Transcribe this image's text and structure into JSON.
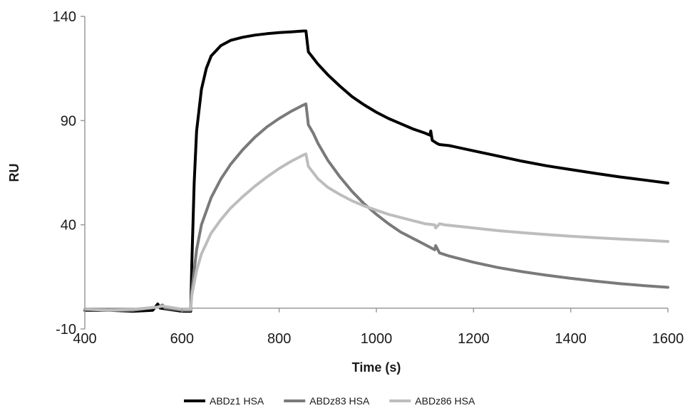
{
  "chart_data": {
    "type": "line",
    "title": "",
    "xlabel": "Time (s)",
    "ylabel": "RU",
    "xlim": [
      400,
      1600
    ],
    "ylim": [
      -10,
      140
    ],
    "xticks": [
      400,
      600,
      800,
      1000,
      1200,
      1400,
      1600
    ],
    "yticks": [
      -10,
      40,
      90,
      140
    ],
    "grid": false,
    "legend_position": "bottom",
    "series": [
      {
        "name": "ABDz1 HSA",
        "color": "#000000",
        "points": [
          [
            400,
            -1
          ],
          [
            450,
            -1
          ],
          [
            500,
            -1.5
          ],
          [
            540,
            -1
          ],
          [
            550,
            2
          ],
          [
            555,
            0
          ],
          [
            600,
            -1.5
          ],
          [
            618,
            -1.5
          ],
          [
            620,
            20
          ],
          [
            625,
            60
          ],
          [
            630,
            85
          ],
          [
            640,
            105
          ],
          [
            650,
            115
          ],
          [
            660,
            121
          ],
          [
            680,
            126
          ],
          [
            700,
            128.5
          ],
          [
            725,
            130
          ],
          [
            750,
            131
          ],
          [
            775,
            131.7
          ],
          [
            800,
            132.2
          ],
          [
            825,
            132.6
          ],
          [
            850,
            133
          ],
          [
            855,
            133
          ],
          [
            860,
            123
          ],
          [
            870,
            120
          ],
          [
            880,
            117
          ],
          [
            900,
            112
          ],
          [
            925,
            106.5
          ],
          [
            950,
            101.5
          ],
          [
            975,
            97.5
          ],
          [
            1000,
            94
          ],
          [
            1025,
            91
          ],
          [
            1050,
            88.5
          ],
          [
            1075,
            86
          ],
          [
            1100,
            84
          ],
          [
            1110,
            83
          ],
          [
            1112,
            85
          ],
          [
            1115,
            80.5
          ],
          [
            1125,
            79
          ],
          [
            1130,
            78.5
          ],
          [
            1150,
            78
          ],
          [
            1200,
            75.5
          ],
          [
            1250,
            73
          ],
          [
            1300,
            70.5
          ],
          [
            1350,
            68.3
          ],
          [
            1400,
            66.5
          ],
          [
            1450,
            64.7
          ],
          [
            1500,
            63
          ],
          [
            1550,
            61.5
          ],
          [
            1600,
            60
          ]
        ]
      },
      {
        "name": "ABDz83 HSA",
        "color": "#7a7a7a",
        "points": [
          [
            400,
            -0.5
          ],
          [
            450,
            -1
          ],
          [
            500,
            -1
          ],
          [
            550,
            0.5
          ],
          [
            560,
            1.5
          ],
          [
            565,
            0
          ],
          [
            600,
            -1
          ],
          [
            618,
            -1
          ],
          [
            620,
            8
          ],
          [
            630,
            28
          ],
          [
            640,
            40
          ],
          [
            660,
            53
          ],
          [
            680,
            62
          ],
          [
            700,
            69
          ],
          [
            725,
            76
          ],
          [
            750,
            82
          ],
          [
            775,
            87
          ],
          [
            800,
            91
          ],
          [
            825,
            94.5
          ],
          [
            850,
            97.5
          ],
          [
            855,
            98
          ],
          [
            860,
            88
          ],
          [
            870,
            84
          ],
          [
            880,
            79
          ],
          [
            900,
            71
          ],
          [
            925,
            63
          ],
          [
            950,
            56
          ],
          [
            975,
            50
          ],
          [
            1000,
            45
          ],
          [
            1025,
            40.5
          ],
          [
            1050,
            36.5
          ],
          [
            1075,
            33.5
          ],
          [
            1100,
            30.5
          ],
          [
            1120,
            28
          ],
          [
            1122,
            30
          ],
          [
            1130,
            26.5
          ],
          [
            1150,
            25
          ],
          [
            1200,
            22
          ],
          [
            1250,
            19.5
          ],
          [
            1300,
            17.5
          ],
          [
            1350,
            15.8
          ],
          [
            1400,
            14.3
          ],
          [
            1450,
            13
          ],
          [
            1500,
            11.8
          ],
          [
            1550,
            10.8
          ],
          [
            1600,
            10
          ]
        ]
      },
      {
        "name": "ABDz86 HSA",
        "color": "#bdbdbd",
        "points": [
          [
            400,
            -0.5
          ],
          [
            450,
            -1
          ],
          [
            500,
            -0.5
          ],
          [
            550,
            0.5
          ],
          [
            560,
            1
          ],
          [
            600,
            -0.5
          ],
          [
            618,
            -0.5
          ],
          [
            620,
            6
          ],
          [
            630,
            18
          ],
          [
            640,
            26
          ],
          [
            660,
            36
          ],
          [
            680,
            42.5
          ],
          [
            700,
            48
          ],
          [
            725,
            53.5
          ],
          [
            750,
            58.5
          ],
          [
            775,
            63
          ],
          [
            800,
            67
          ],
          [
            825,
            70.5
          ],
          [
            850,
            73.5
          ],
          [
            855,
            74
          ],
          [
            860,
            68
          ],
          [
            870,
            65
          ],
          [
            880,
            62
          ],
          [
            900,
            58
          ],
          [
            925,
            54.5
          ],
          [
            950,
            51.5
          ],
          [
            975,
            49
          ],
          [
            1000,
            47
          ],
          [
            1025,
            45
          ],
          [
            1050,
            43.5
          ],
          [
            1075,
            42
          ],
          [
            1100,
            40.5
          ],
          [
            1120,
            40
          ],
          [
            1122,
            38.5
          ],
          [
            1130,
            40.5
          ],
          [
            1140,
            40
          ],
          [
            1200,
            38.5
          ],
          [
            1250,
            37.2
          ],
          [
            1300,
            36.2
          ],
          [
            1350,
            35.3
          ],
          [
            1400,
            34.5
          ],
          [
            1450,
            33.8
          ],
          [
            1500,
            33.2
          ],
          [
            1550,
            32.6
          ],
          [
            1600,
            32
          ]
        ]
      }
    ]
  }
}
